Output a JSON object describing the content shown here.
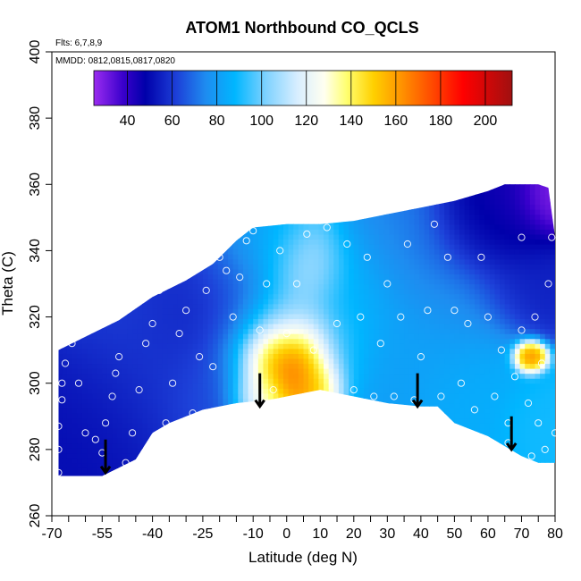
{
  "chart_data": {
    "type": "heatmap",
    "title": "ATOM1 Northbound CO_QCLS",
    "notes": {
      "flights": "Flts: 6,7,8,9",
      "dates": "MMDD: 0812,0815,0817,0820"
    },
    "xlabel": "Latitude (deg N)",
    "ylabel": "Theta (C)",
    "xlim": [
      -70,
      80
    ],
    "ylim": [
      260,
      400
    ],
    "x_tick_labels": [
      -70,
      -55,
      -40,
      -25,
      -10,
      0,
      10,
      20,
      30,
      40,
      50,
      60,
      70,
      80
    ],
    "x_minor_ticks": [
      -65,
      -60,
      -50,
      -45,
      -35,
      -30,
      -20,
      -15,
      -5,
      5,
      15,
      25,
      35,
      45,
      55,
      65,
      75
    ],
    "y_ticks": [
      260,
      280,
      300,
      320,
      340,
      360,
      380,
      400
    ],
    "colorbar": {
      "min": 25,
      "max": 212,
      "tick_labels": [
        40,
        60,
        80,
        100,
        120,
        140,
        160,
        180,
        200
      ],
      "boundaries": [
        40,
        60,
        80,
        100,
        120,
        140,
        160,
        180,
        200
      ],
      "stops": [
        {
          "v": 25,
          "c": "#9b2cf0"
        },
        {
          "v": 38,
          "c": "#3a00cc"
        },
        {
          "v": 48,
          "c": "#0000aa"
        },
        {
          "v": 62,
          "c": "#1d40d8"
        },
        {
          "v": 75,
          "c": "#1e8cf0"
        },
        {
          "v": 88,
          "c": "#00b6ff"
        },
        {
          "v": 102,
          "c": "#7fd2ff"
        },
        {
          "v": 116,
          "c": "#d8eeff"
        },
        {
          "v": 128,
          "c": "#fffff0"
        },
        {
          "v": 138,
          "c": "#ffff70"
        },
        {
          "v": 150,
          "c": "#ffd000"
        },
        {
          "v": 163,
          "c": "#ff9000"
        },
        {
          "v": 178,
          "c": "#ff4000"
        },
        {
          "v": 190,
          "c": "#ff0000"
        },
        {
          "v": 212,
          "c": "#a01010"
        }
      ]
    },
    "domain_boundary": {
      "top": [
        [
          -68,
          310
        ],
        [
          -60,
          314
        ],
        [
          -50,
          319
        ],
        [
          -40,
          326
        ],
        [
          -30,
          331
        ],
        [
          -22,
          336
        ],
        [
          -15,
          343
        ],
        [
          -10,
          347
        ],
        [
          0,
          348
        ],
        [
          10,
          348
        ],
        [
          20,
          349
        ],
        [
          30,
          351
        ],
        [
          40,
          353
        ],
        [
          50,
          355
        ],
        [
          60,
          358
        ],
        [
          65,
          360
        ],
        [
          75,
          360
        ],
        [
          78,
          359
        ],
        [
          80,
          344
        ]
      ],
      "bottom": [
        [
          -68,
          272
        ],
        [
          -55,
          272
        ],
        [
          -45,
          277
        ],
        [
          -40,
          285
        ],
        [
          -35,
          288
        ],
        [
          -25,
          292
        ],
        [
          -15,
          294
        ],
        [
          -5,
          295
        ],
        [
          5,
          297
        ],
        [
          10,
          298
        ],
        [
          20,
          296
        ],
        [
          30,
          294
        ],
        [
          40,
          293
        ],
        [
          45,
          293
        ],
        [
          50,
          288
        ],
        [
          60,
          284
        ],
        [
          65,
          281
        ],
        [
          70,
          278
        ],
        [
          75,
          276
        ],
        [
          80,
          276
        ]
      ]
    },
    "field_sources": [
      {
        "lat": -63,
        "theta": 290,
        "value": 50,
        "sigma": 12
      },
      {
        "lat": -55,
        "theta": 300,
        "value": 55,
        "sigma": 12
      },
      {
        "lat": -50,
        "theta": 320,
        "value": 62,
        "sigma": 12
      },
      {
        "lat": -40,
        "theta": 305,
        "value": 60,
        "sigma": 12
      },
      {
        "lat": -35,
        "theta": 322,
        "value": 58,
        "sigma": 10
      },
      {
        "lat": -25,
        "theta": 320,
        "value": 52,
        "sigma": 10
      },
      {
        "lat": -22,
        "theta": 300,
        "value": 65,
        "sigma": 9
      },
      {
        "lat": -15,
        "theta": 330,
        "value": 70,
        "sigma": 10
      },
      {
        "lat": -10,
        "theta": 312,
        "value": 90,
        "sigma": 9
      },
      {
        "lat": -5,
        "theta": 340,
        "value": 85,
        "sigma": 8
      },
      {
        "lat": 0,
        "theta": 320,
        "value": 110,
        "sigma": 7
      },
      {
        "lat": 5,
        "theta": 335,
        "value": 118,
        "sigma": 7
      },
      {
        "lat": 2,
        "theta": 307,
        "value": 205,
        "sigma": 7
      },
      {
        "lat": -5,
        "theta": 308,
        "value": 180,
        "sigma": 6
      },
      {
        "lat": 8,
        "theta": 300,
        "value": 160,
        "sigma": 5
      },
      {
        "lat": -8,
        "theta": 297,
        "value": 140,
        "sigma": 5
      },
      {
        "lat": 15,
        "theta": 310,
        "value": 95,
        "sigma": 8
      },
      {
        "lat": 20,
        "theta": 330,
        "value": 88,
        "sigma": 10
      },
      {
        "lat": 28,
        "theta": 305,
        "value": 80,
        "sigma": 10
      },
      {
        "lat": 35,
        "theta": 340,
        "value": 72,
        "sigma": 10
      },
      {
        "lat": 40,
        "theta": 310,
        "value": 82,
        "sigma": 10
      },
      {
        "lat": 50,
        "theta": 325,
        "value": 75,
        "sigma": 10
      },
      {
        "lat": 55,
        "theta": 300,
        "value": 85,
        "sigma": 10
      },
      {
        "lat": 58,
        "theta": 345,
        "value": 52,
        "sigma": 9
      },
      {
        "lat": 65,
        "theta": 350,
        "value": 42,
        "sigma": 8
      },
      {
        "lat": 70,
        "theta": 330,
        "value": 55,
        "sigma": 8
      },
      {
        "lat": 72,
        "theta": 308,
        "value": 175,
        "sigma": 2.5
      },
      {
        "lat": 75,
        "theta": 290,
        "value": 90,
        "sigma": 6
      },
      {
        "lat": 78,
        "theta": 355,
        "value": 28,
        "sigma": 5
      }
    ],
    "sample_points": [
      [
        -68,
        273
      ],
      [
        -68,
        280
      ],
      [
        -68,
        287
      ],
      [
        -67,
        295
      ],
      [
        -67,
        300
      ],
      [
        -66,
        306
      ],
      [
        -64,
        312
      ],
      [
        -62,
        300
      ],
      [
        -60,
        285
      ],
      [
        -57,
        283
      ],
      [
        -55,
        279
      ],
      [
        -54,
        288
      ],
      [
        -52,
        296
      ],
      [
        -51,
        303
      ],
      [
        -50,
        308
      ],
      [
        -48,
        276
      ],
      [
        -46,
        285
      ],
      [
        -44,
        298
      ],
      [
        -42,
        312
      ],
      [
        -40,
        318
      ],
      [
        -38,
        328
      ],
      [
        -36,
        288
      ],
      [
        -34,
        300
      ],
      [
        -32,
        315
      ],
      [
        -30,
        322
      ],
      [
        -28,
        291
      ],
      [
        -26,
        308
      ],
      [
        -24,
        328
      ],
      [
        -22,
        305
      ],
      [
        -20,
        338
      ],
      [
        -18,
        334
      ],
      [
        -16,
        320
      ],
      [
        -14,
        332
      ],
      [
        -12,
        343
      ],
      [
        -10,
        346
      ],
      [
        -8,
        316
      ],
      [
        -6,
        330
      ],
      [
        -4,
        298
      ],
      [
        -2,
        340
      ],
      [
        0,
        315
      ],
      [
        3,
        330
      ],
      [
        6,
        345
      ],
      [
        8,
        310
      ],
      [
        12,
        347
      ],
      [
        15,
        318
      ],
      [
        18,
        342
      ],
      [
        20,
        298
      ],
      [
        22,
        320
      ],
      [
        24,
        338
      ],
      [
        26,
        296
      ],
      [
        28,
        312
      ],
      [
        30,
        330
      ],
      [
        32,
        296
      ],
      [
        34,
        320
      ],
      [
        36,
        342
      ],
      [
        38,
        295
      ],
      [
        40,
        308
      ],
      [
        42,
        322
      ],
      [
        44,
        348
      ],
      [
        46,
        296
      ],
      [
        48,
        338
      ],
      [
        50,
        322
      ],
      [
        52,
        300
      ],
      [
        54,
        318
      ],
      [
        56,
        292
      ],
      [
        58,
        338
      ],
      [
        60,
        320
      ],
      [
        62,
        296
      ],
      [
        64,
        310
      ],
      [
        66,
        288
      ],
      [
        68,
        302
      ],
      [
        70,
        316
      ],
      [
        72,
        294
      ],
      [
        74,
        320
      ],
      [
        75,
        288
      ],
      [
        76,
        306
      ],
      [
        77,
        280
      ],
      [
        78,
        330
      ],
      [
        79,
        344
      ],
      [
        80,
        285
      ],
      [
        70,
        344
      ],
      [
        66,
        282
      ],
      [
        73,
        278
      ]
    ],
    "arrows": [
      {
        "lat": -54,
        "theta_top": 283,
        "theta_bottom": 273
      },
      {
        "lat": -8,
        "theta_top": 303,
        "theta_bottom": 293
      },
      {
        "lat": 39,
        "theta_top": 303,
        "theta_bottom": 293
      },
      {
        "lat": 67,
        "theta_top": 290,
        "theta_bottom": 280
      }
    ]
  }
}
